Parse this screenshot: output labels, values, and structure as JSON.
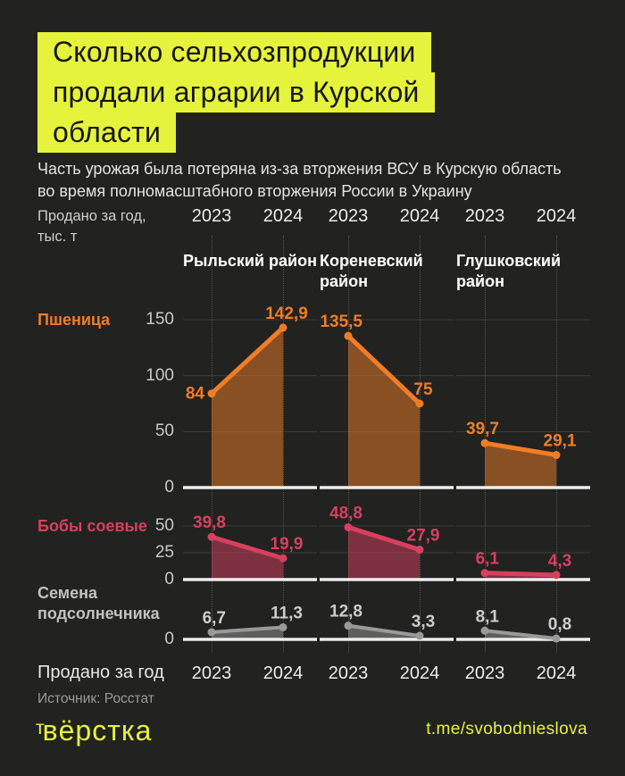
{
  "header": {
    "title_lines": [
      "Сколько сельхозпродукции",
      "продали аграрии в Курской",
      "области"
    ],
    "subtitle_lines": [
      "Часть урожая была потеряна из-за вторжения ВСУ в Курскую область",
      "во время полномасштабного вторжения России в Украину"
    ],
    "axis_note_lines": [
      "Продано за год,",
      "тыс. т"
    ]
  },
  "columns": {
    "years": [
      "2023",
      "2024"
    ]
  },
  "chart_data": [
    {
      "type": "area",
      "product": "Пшеница",
      "color": "#f07d26",
      "label_color": "#f07d26",
      "categories": [
        "2023",
        "2024"
      ],
      "ylim": [
        0,
        150
      ],
      "yticks": [
        0,
        50,
        100,
        150
      ],
      "districts": [
        {
          "name": "Рыльский район",
          "values": [
            84,
            142.9
          ],
          "labels": [
            "84",
            "142,9"
          ]
        },
        {
          "name": "Кореневский район",
          "values": [
            135.5,
            75
          ],
          "labels": [
            "135,5",
            "75"
          ]
        },
        {
          "name": "Глушковский район",
          "values": [
            39.7,
            29.1
          ],
          "labels": [
            "39,7",
            "29,1"
          ]
        }
      ]
    },
    {
      "type": "area",
      "product": "Бобы соевые",
      "color": "#d7405f",
      "label_color": "#d7405f",
      "categories": [
        "2023",
        "2024"
      ],
      "ylim": [
        0,
        50
      ],
      "yticks": [
        0,
        25,
        50
      ],
      "districts": [
        {
          "name": "Рыльский район",
          "values": [
            39.8,
            19.9
          ],
          "labels": [
            "39,8",
            "19,9"
          ]
        },
        {
          "name": "Кореневский район",
          "values": [
            48.8,
            27.9
          ],
          "labels": [
            "48,8",
            "27,9"
          ]
        },
        {
          "name": "Глушковский район",
          "values": [
            6.1,
            4.3
          ],
          "labels": [
            "6,1",
            "4,3"
          ]
        }
      ]
    },
    {
      "type": "area",
      "product": "Семена подсолнечника",
      "color": "#9a9a9a",
      "label_color": "#cdcdcd",
      "categories": [
        "2023",
        "2024"
      ],
      "ylim": [
        0,
        50
      ],
      "yticks": [
        0
      ],
      "districts": [
        {
          "name": "Рыльский район",
          "values": [
            6.7,
            11.3
          ],
          "labels": [
            "6,7",
            "11,3"
          ]
        },
        {
          "name": "Кореневский район",
          "values": [
            12.8,
            3.3
          ],
          "labels": [
            "12,8",
            "3,3"
          ]
        },
        {
          "name": "Глушковский район",
          "values": [
            8.1,
            0.8
          ],
          "labels": [
            "8,1",
            "0,8"
          ]
        }
      ]
    }
  ],
  "footer": {
    "axis_label": "Продано за год",
    "source": "Источник: Росстат",
    "logo_mark": "т",
    "logo_name": "вёрстка",
    "telegram": "t.me/svobodnieslova"
  },
  "colors": {
    "background": "#222221",
    "accent_yellow": "#e6f33c",
    "wheat": "#f07d26",
    "soy": "#d7405f",
    "sunflower": "#9a9a9a"
  }
}
